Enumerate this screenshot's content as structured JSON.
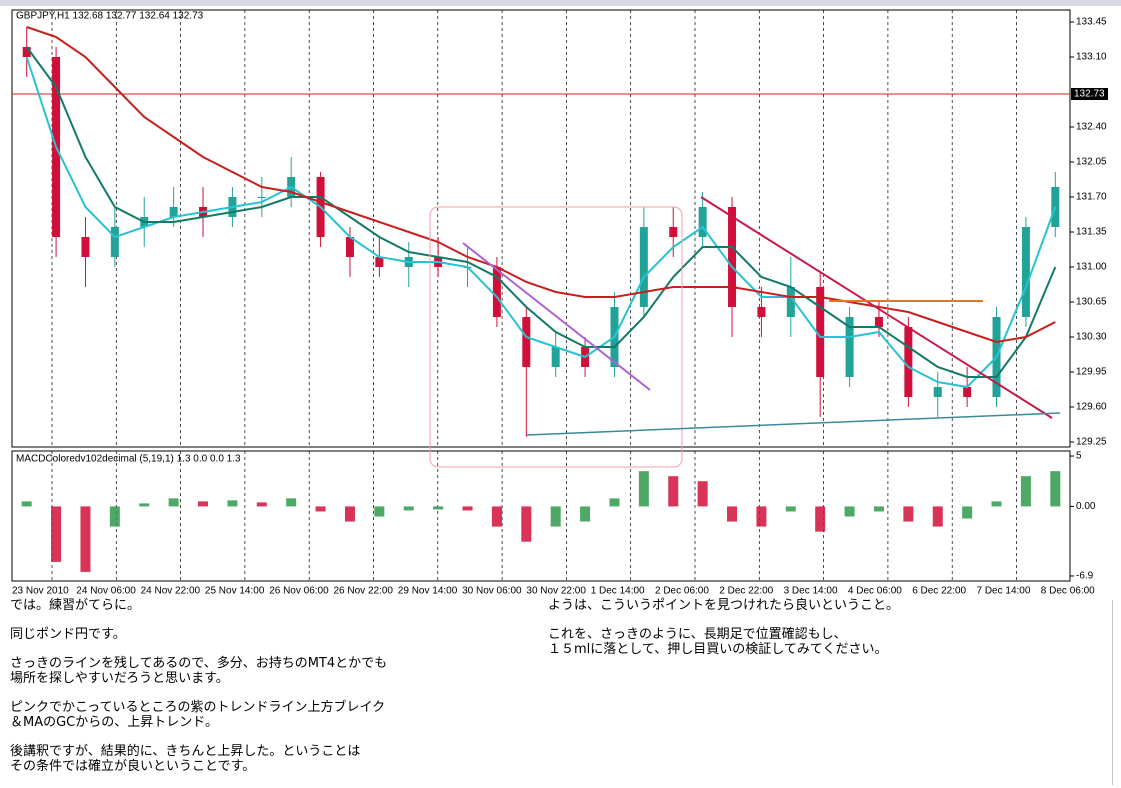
{
  "chart_data": {
    "type": "candlestick",
    "title": "GBPJPY,H1 132.68 132.77 132.64 132.73",
    "up_color": "#22a39a",
    "down_color": "#d0103a",
    "open": [
      133.2,
      133.1,
      131.3,
      131.1,
      131.4,
      131.5,
      131.6,
      131.5,
      131.7,
      131.7,
      131.9,
      131.3,
      131.1,
      131.0,
      131.1,
      131.0,
      131.0,
      130.5,
      130.0,
      130.2,
      130.0,
      130.6,
      131.4,
      131.3,
      131.6,
      130.6,
      130.5,
      130.8,
      129.9,
      130.5,
      130.4,
      129.7,
      129.8,
      129.7,
      130.5,
      131.4
    ],
    "high": [
      133.4,
      133.2,
      131.5,
      131.6,
      131.7,
      131.8,
      131.8,
      131.8,
      131.9,
      132.1,
      131.95,
      131.4,
      131.3,
      131.25,
      131.3,
      131.2,
      131.1,
      130.6,
      130.35,
      130.3,
      130.75,
      131.6,
      131.6,
      131.75,
      131.7,
      130.8,
      131.1,
      130.95,
      130.6,
      130.65,
      130.5,
      129.95,
      130.0,
      130.6,
      131.5,
      131.95
    ],
    "low": [
      132.9,
      131.1,
      130.8,
      131.0,
      131.2,
      131.4,
      131.3,
      131.4,
      131.5,
      131.6,
      131.2,
      130.9,
      130.9,
      130.8,
      130.9,
      130.8,
      130.4,
      129.3,
      129.9,
      129.9,
      129.9,
      130.5,
      131.1,
      131.2,
      130.3,
      130.3,
      130.3,
      129.5,
      129.8,
      130.3,
      129.6,
      129.5,
      129.6,
      129.6,
      130.4,
      131.3
    ],
    "close": [
      133.1,
      131.3,
      131.1,
      131.4,
      131.5,
      131.6,
      131.5,
      131.7,
      131.7,
      131.9,
      131.3,
      131.1,
      131.0,
      131.1,
      131.0,
      131.0,
      130.5,
      130.0,
      130.2,
      130.0,
      130.6,
      131.4,
      131.3,
      131.6,
      130.6,
      130.5,
      130.8,
      129.9,
      130.5,
      130.4,
      129.7,
      129.8,
      129.7,
      130.5,
      131.4,
      131.8
    ],
    "moving_averages": [
      {
        "color": "#27c3d0",
        "values": [
          133.1,
          132.2,
          131.6,
          131.3,
          131.4,
          131.5,
          131.55,
          131.6,
          131.65,
          131.8,
          131.6,
          131.3,
          131.1,
          131.05,
          131.05,
          131.0,
          130.7,
          130.3,
          130.2,
          130.1,
          130.3,
          130.9,
          131.2,
          131.4,
          131.0,
          130.7,
          130.7,
          130.3,
          130.3,
          130.35,
          130.0,
          129.85,
          129.8,
          130.1,
          130.8,
          131.6
        ]
      },
      {
        "color": "#117a68",
        "values": [
          133.2,
          132.8,
          132.1,
          131.6,
          131.45,
          131.45,
          131.5,
          131.55,
          131.6,
          131.7,
          131.7,
          131.5,
          131.3,
          131.15,
          131.1,
          131.05,
          130.9,
          130.6,
          130.35,
          130.2,
          130.2,
          130.5,
          130.9,
          131.2,
          131.2,
          130.9,
          130.8,
          130.6,
          130.4,
          130.4,
          130.2,
          130.0,
          129.9,
          129.9,
          130.3,
          131.0
        ]
      },
      {
        "color": "#c81e1e",
        "values": [
          133.4,
          133.3,
          133.1,
          132.8,
          132.5,
          132.3,
          132.1,
          131.95,
          131.8,
          131.75,
          131.65,
          131.55,
          131.45,
          131.35,
          131.25,
          131.1,
          131.0,
          130.85,
          130.75,
          130.7,
          130.7,
          130.75,
          130.8,
          130.8,
          130.8,
          130.75,
          130.7,
          130.7,
          130.65,
          130.6,
          130.55,
          130.45,
          130.35,
          130.25,
          130.3,
          130.45
        ]
      }
    ],
    "ylim": [
      129.2,
      133.57
    ],
    "yticks": [
      133.45,
      {
        "value": 133.1,
        "label": "133.10"
      },
      {
        "value": 132.4,
        "label": "132.40"
      },
      132.05,
      {
        "value": 131.7,
        "label": "131.70"
      },
      131.35,
      {
        "value": 131.0,
        "label": "131.00"
      },
      130.65,
      {
        "value": 130.3,
        "label": "130.30"
      },
      129.95,
      {
        "value": 129.6,
        "label": "129.60"
      },
      129.25
    ],
    "current_price": {
      "value": 132.73,
      "label": "132.73"
    },
    "time_labels": [
      "23 Nov 2010",
      "24 Nov 06:00",
      "24 Nov 22:00",
      "25 Nov 14:00",
      "26 Nov 06:00",
      "26 Nov 22:00",
      "29 Nov 14:00",
      "30 Nov 06:00",
      "30 Nov 22:00",
      "1 Dec 14:00",
      "2 Dec 06:00",
      "2 Dec 22:00",
      "3 Dec 14:00",
      "4 Dec 06:00",
      "6 Dec 22:00",
      "7 Dec 14:00",
      "8 Dec 06:00"
    ],
    "indicator": {
      "title": "MACDColoredv102decimal (5,19,1) 1.3 0.0 0.0 1.3",
      "up_color": "#2e9a4a",
      "down_color": "#d0103a",
      "values": [
        0.5,
        -5.5,
        -6.5,
        -2,
        0.3,
        0.8,
        0.5,
        0.6,
        0.4,
        0.8,
        -0.5,
        -1.5,
        -1.0,
        -0.4,
        -0.3,
        -0.4,
        -2.0,
        -3.5,
        -2.0,
        -1.5,
        0.8,
        3.5,
        3.0,
        2.5,
        -1.5,
        -2.0,
        -0.5,
        -2.5,
        -1.0,
        -0.5,
        -1.5,
        -2.0,
        -1.2,
        0.5,
        3.0,
        3.5
      ],
      "ylim": [
        -7.4,
        5.5
      ],
      "yticks": [
        5,
        {
          "value": 0,
          "label": "0.00"
        },
        -6.9
      ]
    }
  },
  "notes": {
    "left": [
      [
        "では。練習がてらに。"
      ],
      [
        "同じポンド円です。"
      ],
      [
        "さっきのラインを残してあるので、多分、お持ちのMT4とかでも",
        "場所を探しやすいだろうと思います。"
      ],
      [
        "ピンクでかこっているところの紫のトレンドライン上方ブレイク",
        "＆MAのGCからの、上昇トレンド。"
      ],
      [
        "後講釈ですが、結果的に、きちんと上昇した。ということは",
        "その条件では確立が良いということです。"
      ]
    ],
    "right": [
      [
        "ようは、こういうポイントを見つけれたら良いということ。"
      ],
      [
        "これを、さっきのように、長期足で位置確認もし、",
        "１５mlに落として、押し目買いの検証してみてください。"
      ]
    ]
  }
}
